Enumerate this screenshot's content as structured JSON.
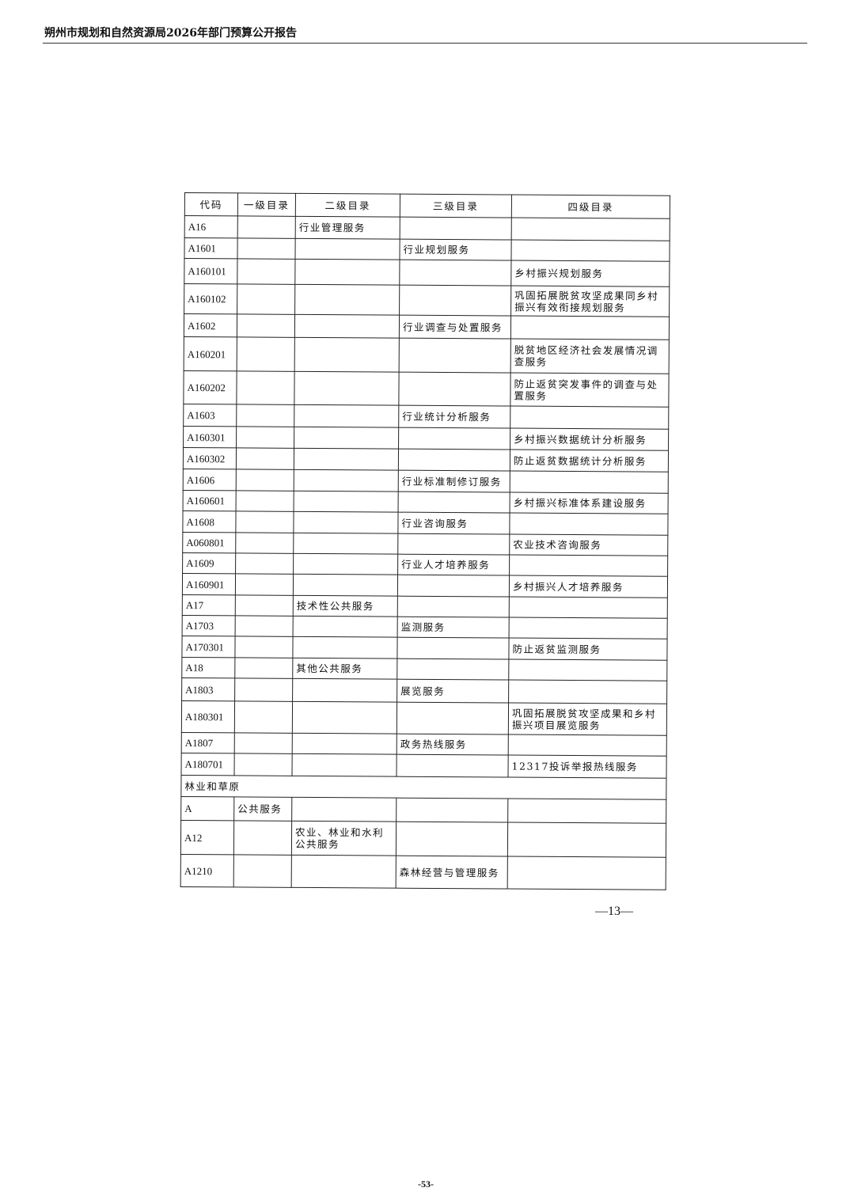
{
  "header": {
    "title": "朔州市规划和自然资源局2026年部门预算公开报告"
  },
  "table": {
    "columns": [
      "代码",
      "一级目录",
      "二级目录",
      "三级目录",
      "四级目录"
    ],
    "rows": [
      {
        "code": "A16",
        "l1": "",
        "l2": "行业管理服务",
        "l3": "",
        "l4": ""
      },
      {
        "code": "A1601",
        "l1": "",
        "l2": "",
        "l3": "行业规划服务",
        "l4": ""
      },
      {
        "code": "A160101",
        "l1": "",
        "l2": "",
        "l3": "",
        "l4": "乡村振兴规划服务"
      },
      {
        "code": "A160102",
        "l1": "",
        "l2": "",
        "l3": "",
        "l4": "巩固拓展脱贫攻坚成果同乡村振兴有效衔接规划服务"
      },
      {
        "code": "A1602",
        "l1": "",
        "l2": "",
        "l3": "行业调查与处置服务",
        "l4": ""
      },
      {
        "code": "A160201",
        "l1": "",
        "l2": "",
        "l3": "",
        "l4": "脱贫地区经济社会发展情况调查服务"
      },
      {
        "code": "A160202",
        "l1": "",
        "l2": "",
        "l3": "",
        "l4": "防止返贫突发事件的调查与处置服务"
      },
      {
        "code": "A1603",
        "l1": "",
        "l2": "",
        "l3": "行业统计分析服务",
        "l4": ""
      },
      {
        "code": "A160301",
        "l1": "",
        "l2": "",
        "l3": "",
        "l4": "乡村振兴数据统计分析服务"
      },
      {
        "code": "A160302",
        "l1": "",
        "l2": "",
        "l3": "",
        "l4": "防止返贫数据统计分析服务"
      },
      {
        "code": "A1606",
        "l1": "",
        "l2": "",
        "l3": "行业标准制修订服务",
        "l4": ""
      },
      {
        "code": "A160601",
        "l1": "",
        "l2": "",
        "l3": "",
        "l4": "乡村振兴标准体系建设服务"
      },
      {
        "code": "A1608",
        "l1": "",
        "l2": "",
        "l3": "行业咨询服务",
        "l4": ""
      },
      {
        "code": "A060801",
        "l1": "",
        "l2": "",
        "l3": "",
        "l4": "农业技术咨询服务"
      },
      {
        "code": "A1609",
        "l1": "",
        "l2": "",
        "l3": "行业人才培养服务",
        "l4": ""
      },
      {
        "code": "A160901",
        "l1": "",
        "l2": "",
        "l3": "",
        "l4": "乡村振兴人才培养服务"
      },
      {
        "code": "A17",
        "l1": "",
        "l2": "技术性公共服务",
        "l3": "",
        "l4": ""
      },
      {
        "code": "A1703",
        "l1": "",
        "l2": "",
        "l3": "监测服务",
        "l4": ""
      },
      {
        "code": "A170301",
        "l1": "",
        "l2": "",
        "l3": "",
        "l4": "防止返贫监测服务"
      },
      {
        "code": "A18",
        "l1": "",
        "l2": "其他公共服务",
        "l3": "",
        "l4": ""
      },
      {
        "code": "A1803",
        "l1": "",
        "l2": "",
        "l3": "展览服务",
        "l4": ""
      },
      {
        "code": "A180301",
        "l1": "",
        "l2": "",
        "l3": "",
        "l4": "巩固拓展脱贫攻坚成果和乡村振兴项目展览服务"
      },
      {
        "code": "A1807",
        "l1": "",
        "l2": "",
        "l3": "政务热线服务",
        "l4": ""
      },
      {
        "code": "A180701",
        "l1": "",
        "l2": "",
        "l3": "",
        "l4": "12317投诉举报热线服务"
      }
    ],
    "section": "林业和草原",
    "rows2": [
      {
        "code": "A",
        "l1": "公共服务",
        "l2": "",
        "l3": "",
        "l4": ""
      },
      {
        "code": "A12",
        "l1": "",
        "l2": "农业、林业和水利公共服务",
        "l3": "",
        "l4": ""
      },
      {
        "code": "A1210",
        "l1": "",
        "l2": "",
        "l3": "森林经营与管理服务",
        "l4": ""
      }
    ]
  },
  "footer": {
    "page_number": "—13—",
    "folio": "-53-"
  }
}
